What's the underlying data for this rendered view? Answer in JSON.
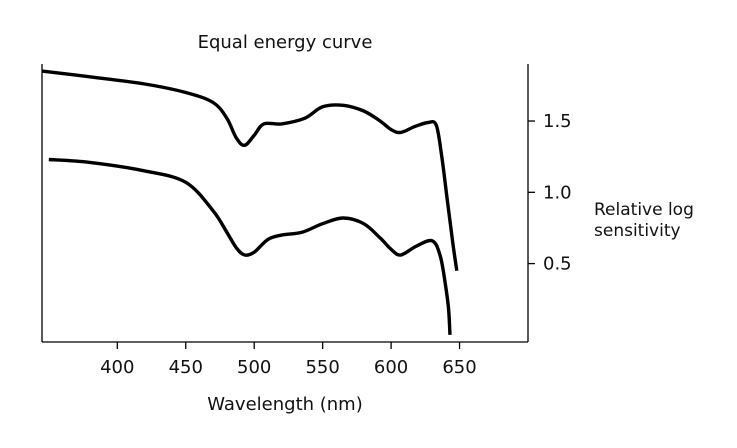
{
  "chart_data": {
    "type": "line",
    "title": "Equal energy curve",
    "xlabel": "Wavelength (nm)",
    "ylabel": "Relative log\nsensitivity",
    "xlim": [
      345,
      700
    ],
    "ylim": [
      -0.05,
      1.9
    ],
    "x_ticks": [
      {
        "value": 400,
        "label": "400"
      },
      {
        "value": 450,
        "label": "450"
      },
      {
        "value": 500,
        "label": "500"
      },
      {
        "value": 550,
        "label": "550"
      },
      {
        "value": 600,
        "label": "600"
      },
      {
        "value": 650,
        "label": "650"
      }
    ],
    "y_ticks": [
      {
        "value": 0.5,
        "label": "0.5"
      },
      {
        "value": 1.0,
        "label": "1.0"
      },
      {
        "value": 1.5,
        "label": "1.5"
      }
    ],
    "y_axis_side": "right",
    "grid": false,
    "legend": "none",
    "series": [
      {
        "x": [
          345,
          380,
          420,
          450,
          470,
          480,
          487,
          493,
          500,
          507,
          520,
          537,
          550,
          565,
          580,
          592,
          600,
          607,
          617,
          627,
          633,
          637,
          641,
          645,
          648
        ],
        "y": [
          1.85,
          1.81,
          1.76,
          1.7,
          1.63,
          1.52,
          1.38,
          1.33,
          1.4,
          1.48,
          1.48,
          1.52,
          1.6,
          1.61,
          1.57,
          1.5,
          1.44,
          1.42,
          1.46,
          1.49,
          1.47,
          1.25,
          0.95,
          0.65,
          0.45
        ]
      },
      {
        "x": [
          350,
          380,
          420,
          450,
          470,
          480,
          487,
          493,
          500,
          510,
          520,
          535,
          550,
          565,
          580,
          592,
          600,
          607,
          618,
          630,
          636,
          640,
          642,
          643
        ],
        "y": [
          1.23,
          1.21,
          1.15,
          1.07,
          0.87,
          0.72,
          0.61,
          0.56,
          0.58,
          0.67,
          0.7,
          0.72,
          0.78,
          0.82,
          0.78,
          0.68,
          0.6,
          0.56,
          0.62,
          0.66,
          0.55,
          0.33,
          0.18,
          0.0
        ]
      }
    ]
  }
}
